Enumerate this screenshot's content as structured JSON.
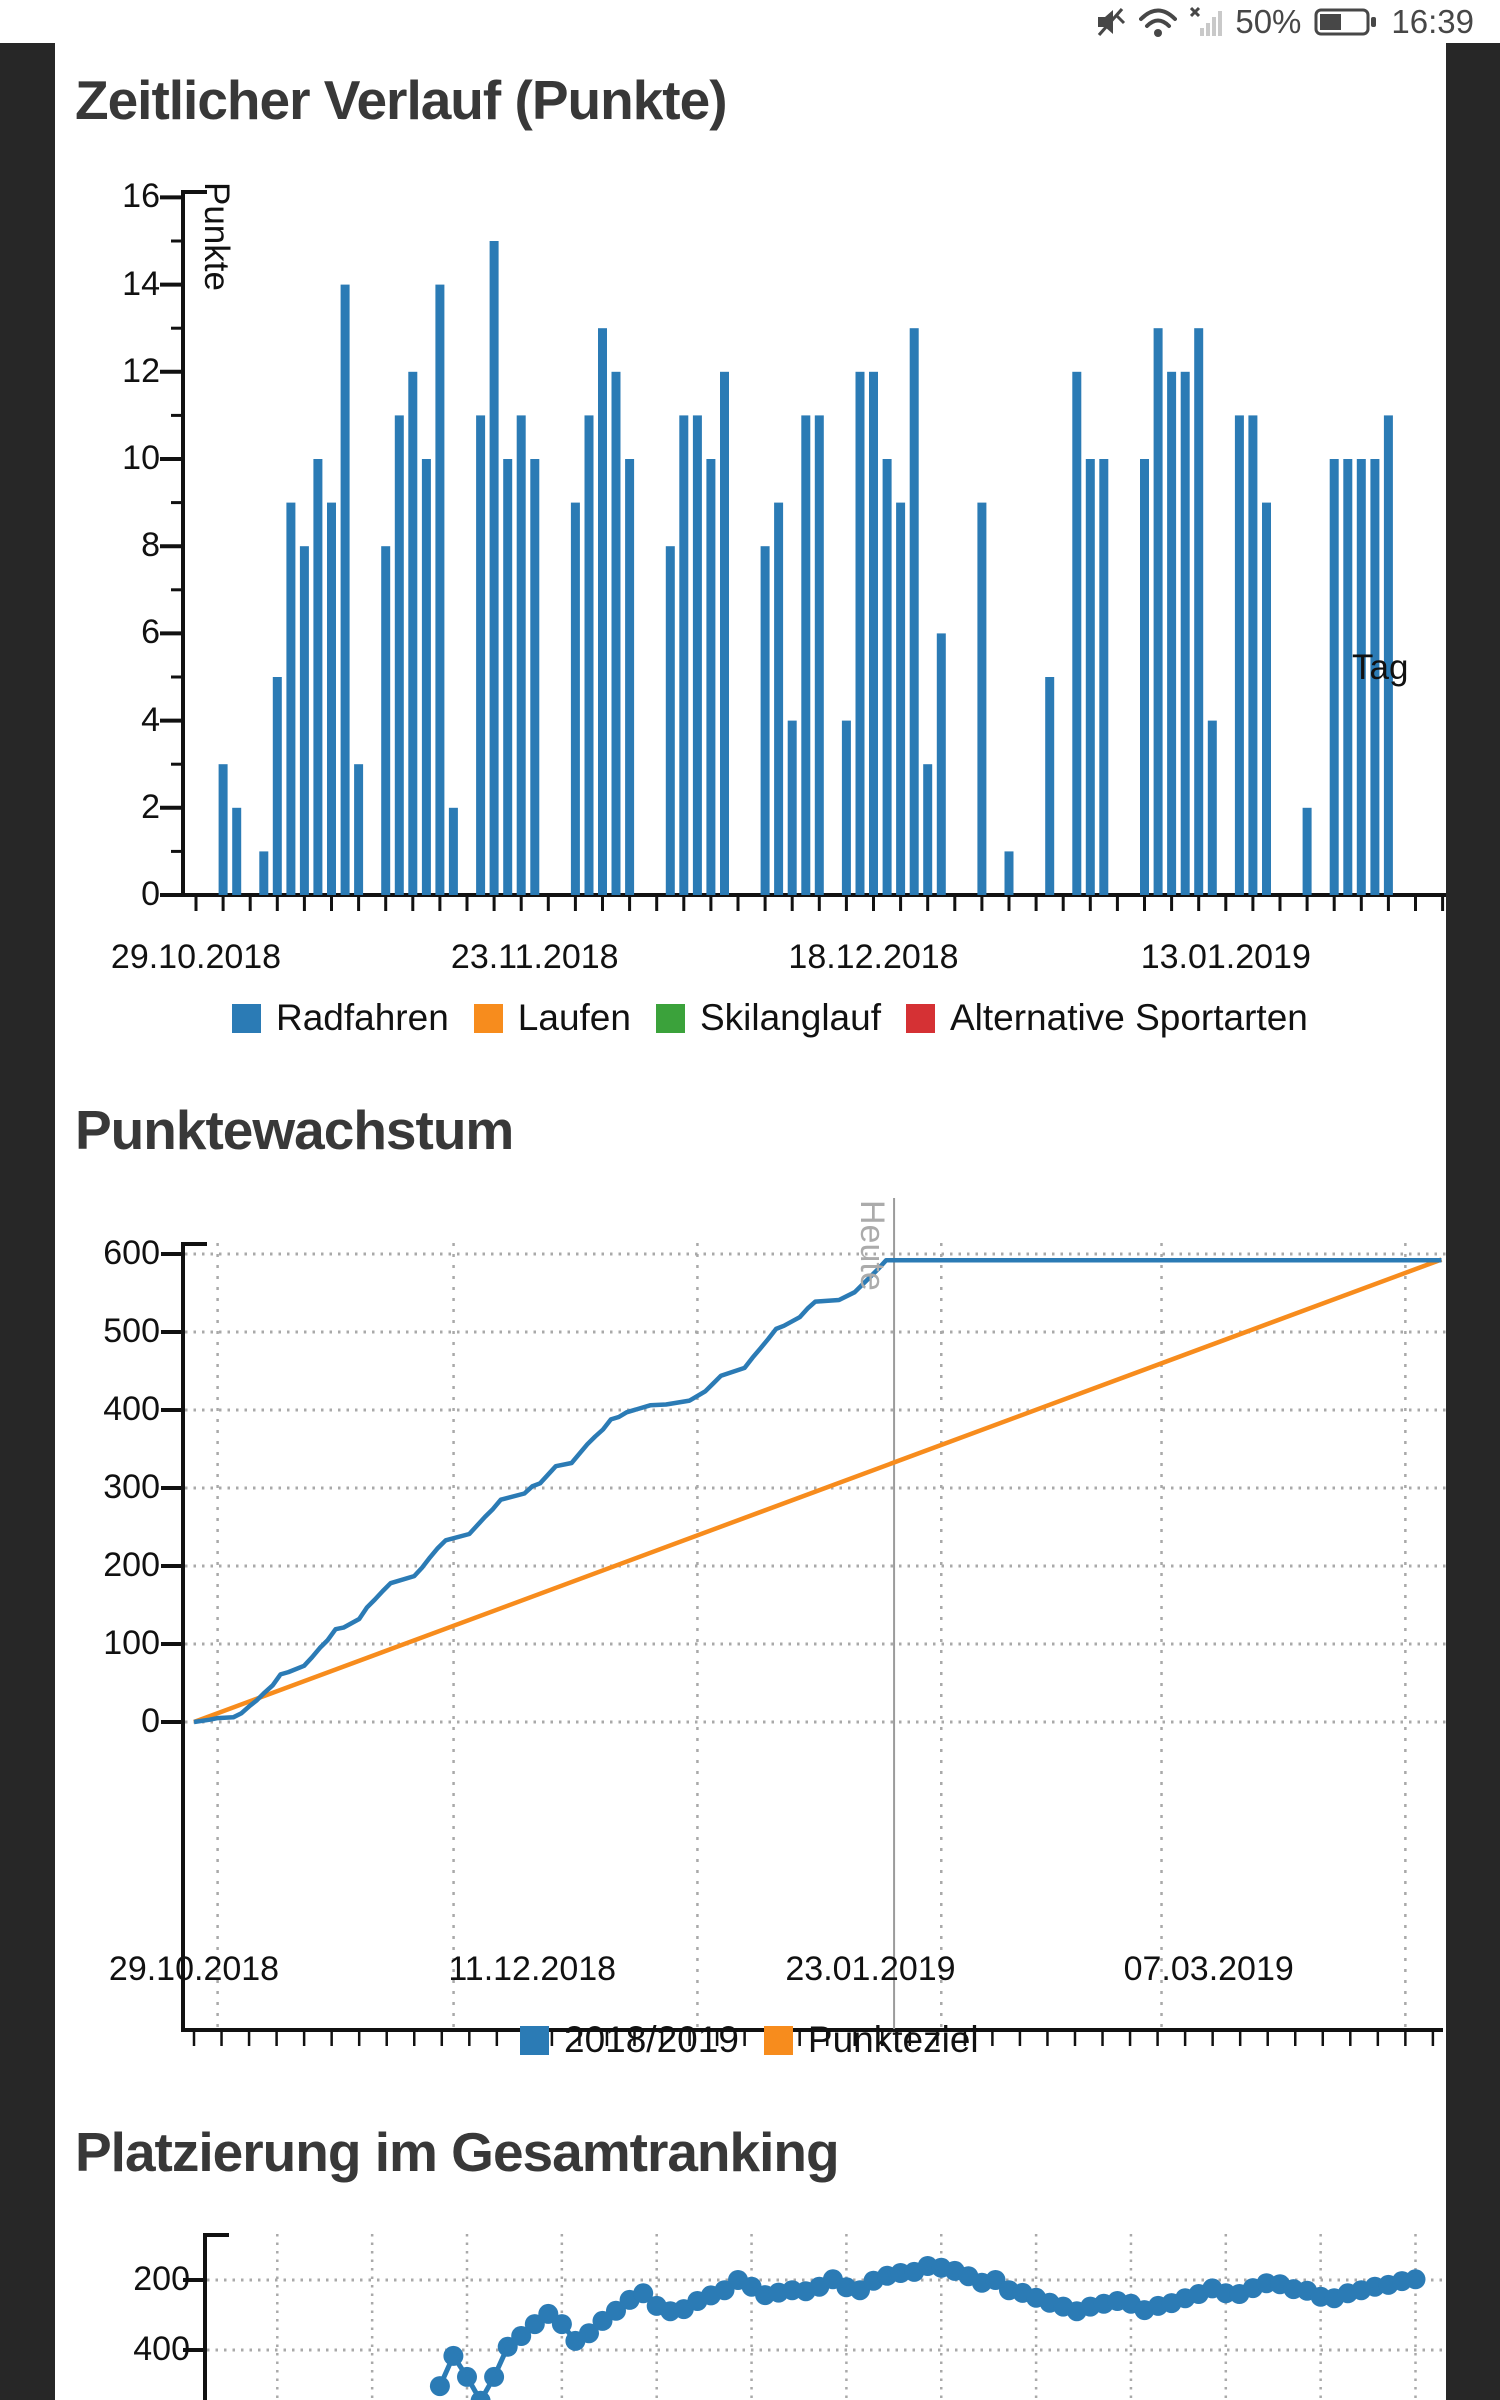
{
  "status_bar": {
    "time": "16:39",
    "battery_percent": "50%",
    "icons": [
      "volume-muted-icon",
      "wifi-icon",
      "cell-signal-off-icon",
      "battery-icon"
    ]
  },
  "theme": {
    "blue": "#2B7BB5",
    "orange": "#F78C1D",
    "green": "#3BA23B",
    "red": "#D53134",
    "axis": "#111111",
    "grid": "#A9A9A9",
    "heute_line": "#9B9B9B",
    "title_color": "#383838",
    "strip": "#272727"
  },
  "chart_data": [
    {
      "type": "bar",
      "title": "Zeitlicher Verlauf (Punkte)",
      "xlabel": "Tag",
      "ylabel": "Punkte",
      "start_date": "29.10.2018",
      "ylim": [
        0,
        16
      ],
      "ytick_step": 2,
      "x_axis_end_day": 92,
      "x_ticks": [
        {
          "label": "29.10.2018",
          "day": 0
        },
        {
          "label": "23.11.2018",
          "day": 25
        },
        {
          "label": "18.12.2018",
          "day": 50
        },
        {
          "label": "13.01.2019",
          "day": 76
        }
      ],
      "points": [
        [
          2,
          3
        ],
        [
          3,
          2
        ],
        [
          5,
          1
        ],
        [
          6,
          5
        ],
        [
          7,
          9
        ],
        [
          8,
          8
        ],
        [
          9,
          10
        ],
        [
          10,
          9
        ],
        [
          11,
          14
        ],
        [
          12,
          3
        ],
        [
          14,
          8
        ],
        [
          15,
          11
        ],
        [
          16,
          12
        ],
        [
          17,
          10
        ],
        [
          18,
          14
        ],
        [
          19,
          2
        ],
        [
          21,
          11
        ],
        [
          22,
          15
        ],
        [
          23,
          10
        ],
        [
          24,
          11
        ],
        [
          25,
          10
        ],
        [
          28,
          9
        ],
        [
          29,
          11
        ],
        [
          30,
          13
        ],
        [
          31,
          12
        ],
        [
          32,
          10
        ],
        [
          35,
          8
        ],
        [
          36,
          11
        ],
        [
          37,
          11
        ],
        [
          38,
          10
        ],
        [
          39,
          12
        ],
        [
          42,
          8
        ],
        [
          43,
          9
        ],
        [
          44,
          4
        ],
        [
          45,
          11
        ],
        [
          46,
          11
        ],
        [
          48,
          4
        ],
        [
          49,
          12
        ],
        [
          50,
          12
        ],
        [
          51,
          10
        ],
        [
          52,
          9
        ],
        [
          53,
          13
        ],
        [
          54,
          3
        ],
        [
          55,
          6
        ],
        [
          58,
          9
        ],
        [
          60,
          1
        ],
        [
          63,
          5
        ],
        [
          65,
          12
        ],
        [
          66,
          10
        ],
        [
          67,
          10
        ],
        [
          70,
          10
        ],
        [
          71,
          13
        ],
        [
          72,
          12
        ],
        [
          73,
          12
        ],
        [
          74,
          13
        ],
        [
          75,
          4
        ],
        [
          77,
          11
        ],
        [
          78,
          11
        ],
        [
          79,
          9
        ],
        [
          82,
          2
        ],
        [
          84,
          10
        ],
        [
          85,
          10
        ],
        [
          86,
          10
        ],
        [
          87,
          10
        ],
        [
          88,
          11
        ]
      ],
      "legend": [
        {
          "label": "Radfahren",
          "color": "#2B7BB5"
        },
        {
          "label": "Laufen",
          "color": "#F78C1D"
        },
        {
          "label": "Skilanglauf",
          "color": "#3BA23B"
        },
        {
          "label": "Alternative Sportarten",
          "color": "#D53134"
        }
      ]
    },
    {
      "type": "line",
      "title": "Punktewachstum",
      "start_date": "29.10.2018",
      "ylim": [
        0,
        600
      ],
      "ytick_step": 100,
      "x_axis_end_day": 158,
      "x_ticks": [
        {
          "label": "29.10.2018",
          "day": 0
        },
        {
          "label": "11.12.2018",
          "day": 43
        },
        {
          "label": "23.01.2019",
          "day": 86
        },
        {
          "label": "07.03.2019",
          "day": 129
        }
      ],
      "month_gridline_days": [
        3,
        33,
        64,
        95,
        123,
        154
      ],
      "annotation": {
        "label": "Heute",
        "day": 89
      },
      "series": [
        {
          "name": "2018/2019",
          "color": "#2B7BB5",
          "points": [
            [
              0,
              0
            ],
            [
              2,
              3
            ],
            [
              3,
              5
            ],
            [
              5,
              6
            ],
            [
              6,
              11
            ],
            [
              7,
              20
            ],
            [
              8,
              28
            ],
            [
              9,
              38
            ],
            [
              10,
              47
            ],
            [
              11,
              61
            ],
            [
              12,
              64
            ],
            [
              14,
              72
            ],
            [
              15,
              83
            ],
            [
              16,
              95
            ],
            [
              17,
              105
            ],
            [
              18,
              119
            ],
            [
              19,
              121
            ],
            [
              21,
              132
            ],
            [
              22,
              147
            ],
            [
              23,
              157
            ],
            [
              24,
              168
            ],
            [
              25,
              178
            ],
            [
              28,
              187
            ],
            [
              29,
              198
            ],
            [
              30,
              211
            ],
            [
              31,
              223
            ],
            [
              32,
              233
            ],
            [
              35,
              241
            ],
            [
              36,
              252
            ],
            [
              37,
              263
            ],
            [
              38,
              273
            ],
            [
              39,
              285
            ],
            [
              42,
              293
            ],
            [
              43,
              302
            ],
            [
              44,
              306
            ],
            [
              45,
              317
            ],
            [
              46,
              328
            ],
            [
              48,
              332
            ],
            [
              49,
              344
            ],
            [
              50,
              356
            ],
            [
              51,
              366
            ],
            [
              52,
              375
            ],
            [
              53,
              388
            ],
            [
              54,
              391
            ],
            [
              55,
              397
            ],
            [
              58,
              406
            ],
            [
              60,
              407
            ],
            [
              63,
              412
            ],
            [
              65,
              424
            ],
            [
              66,
              434
            ],
            [
              67,
              444
            ],
            [
              70,
              454
            ],
            [
              71,
              467
            ],
            [
              72,
              479
            ],
            [
              73,
              491
            ],
            [
              74,
              504
            ],
            [
              75,
              508
            ],
            [
              77,
              519
            ],
            [
              78,
              530
            ],
            [
              79,
              539
            ],
            [
              82,
              541
            ],
            [
              84,
              551
            ],
            [
              85,
              561
            ],
            [
              86,
              571
            ],
            [
              87,
              581
            ],
            [
              88,
              592
            ],
            [
              89,
              592
            ],
            [
              158.6,
              592
            ]
          ]
        },
        {
          "name": "Punkteziel",
          "color": "#F78C1D",
          "points": [
            [
              0,
              0
            ],
            [
              158.6,
              593
            ]
          ]
        }
      ],
      "legend": [
        {
          "label": "2018/2019",
          "color": "#2B7BB5"
        },
        {
          "label": "Punkteziel",
          "color": "#F78C1D"
        }
      ]
    },
    {
      "type": "line",
      "title": "Platzierung im Gesamtranking",
      "start_date": "29.10.2018",
      "inverted_y": true,
      "y_ticks": [
        200,
        400
      ],
      "week_gridline_days": [
        6,
        13,
        20,
        27,
        34,
        41,
        48,
        55,
        62,
        69,
        76,
        83,
        90
      ],
      "series": [
        {
          "name": "Platzierung",
          "color": "#2B7BB5",
          "points": [
            [
              18,
              503
            ],
            [
              19,
              417
            ],
            [
              20,
              477
            ],
            [
              21,
              545
            ],
            [
              22,
              477
            ],
            [
              23,
              391
            ],
            [
              24,
              360
            ],
            [
              25,
              326
            ],
            [
              26,
              297
            ],
            [
              27,
              326
            ],
            [
              28,
              374
            ],
            [
              29,
              352
            ],
            [
              30,
              317
            ],
            [
              31,
              288
            ],
            [
              32,
              257
            ],
            [
              33,
              238
            ],
            [
              34,
              274
            ],
            [
              35,
              289
            ],
            [
              36,
              283
            ],
            [
              37,
              260
            ],
            [
              38,
              244
            ],
            [
              39,
              229
            ],
            [
              40,
              200
            ],
            [
              41,
              219
            ],
            [
              42,
              243
            ],
            [
              43,
              236
            ],
            [
              44,
              229
            ],
            [
              45,
              232
            ],
            [
              46,
              219
            ],
            [
              47,
              198
            ],
            [
              48,
              221
            ],
            [
              49,
              229
            ],
            [
              50,
              202
            ],
            [
              51,
              188
            ],
            [
              52,
              180
            ],
            [
              53,
              177
            ],
            [
              54,
              160
            ],
            [
              55,
              165
            ],
            [
              56,
              174
            ],
            [
              57,
              189
            ],
            [
              58,
              208
            ],
            [
              59,
              200
            ],
            [
              60,
              229
            ],
            [
              61,
              237
            ],
            [
              62,
              251
            ],
            [
              63,
              265
            ],
            [
              64,
              276
            ],
            [
              65,
              289
            ],
            [
              66,
              276
            ],
            [
              67,
              268
            ],
            [
              68,
              260
            ],
            [
              69,
              268
            ],
            [
              70,
              286
            ],
            [
              71,
              274
            ],
            [
              72,
              266
            ],
            [
              73,
              252
            ],
            [
              74,
              240
            ],
            [
              75,
              224
            ],
            [
              76,
              238
            ],
            [
              77,
              240
            ],
            [
              78,
              223
            ],
            [
              79,
              209
            ],
            [
              80,
              212
            ],
            [
              81,
              226
            ],
            [
              82,
              231
            ],
            [
              83,
              248
            ],
            [
              84,
              252
            ],
            [
              85,
              238
            ],
            [
              86,
              229
            ],
            [
              87,
              219
            ],
            [
              88,
              214
            ],
            [
              89,
              203
            ],
            [
              90,
              198
            ]
          ]
        }
      ]
    }
  ]
}
